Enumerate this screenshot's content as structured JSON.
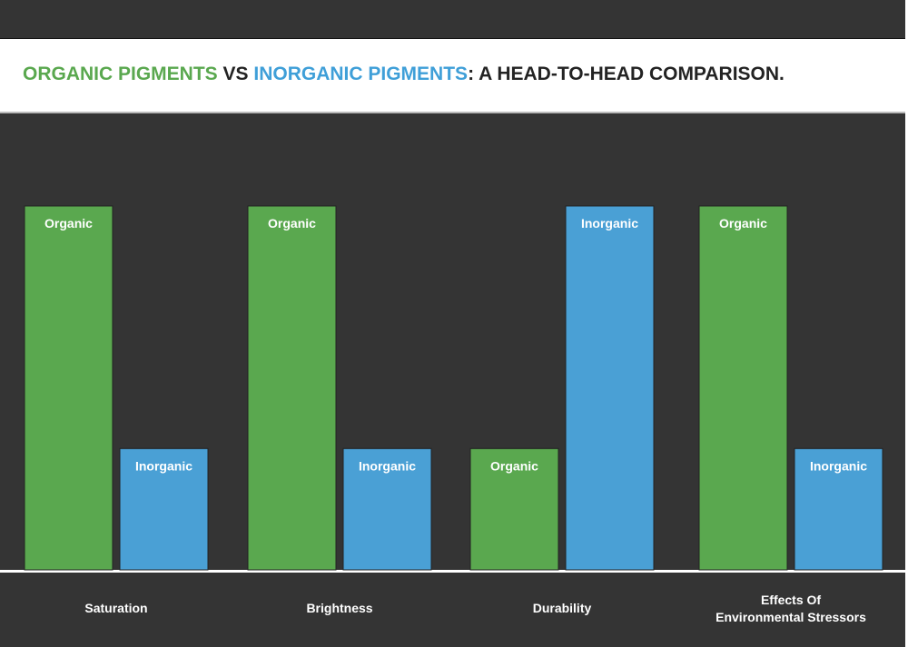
{
  "title": {
    "part1": "ORGANIC PIGMENTS",
    "part2": " VS ",
    "part3": "INORGANIC PIGMENTS",
    "part4": ": A HEAD-TO-HEAD COMPARISON."
  },
  "colors": {
    "organic": "#5aa84f",
    "inorganic": "#4aa0d5",
    "background": "#343434"
  },
  "chart_data": {
    "type": "bar",
    "title": "ORGANIC PIGMENTS VS INORGANIC PIGMENTS: A HEAD-TO-HEAD COMPARISON.",
    "categories": [
      [
        "Saturation"
      ],
      [
        "Brightness"
      ],
      [
        "Durability"
      ],
      [
        "Effects Of",
        "Environmental Stressors"
      ]
    ],
    "series": [
      {
        "name": "Organic",
        "values": [
          3,
          3,
          1,
          3
        ]
      },
      {
        "name": "Inorganic",
        "values": [
          1,
          1,
          3,
          1
        ]
      }
    ],
    "ylim": [
      0,
      3
    ],
    "xlabel": "",
    "ylabel": "",
    "grid": false,
    "legend": "none (labels inside bars)"
  }
}
